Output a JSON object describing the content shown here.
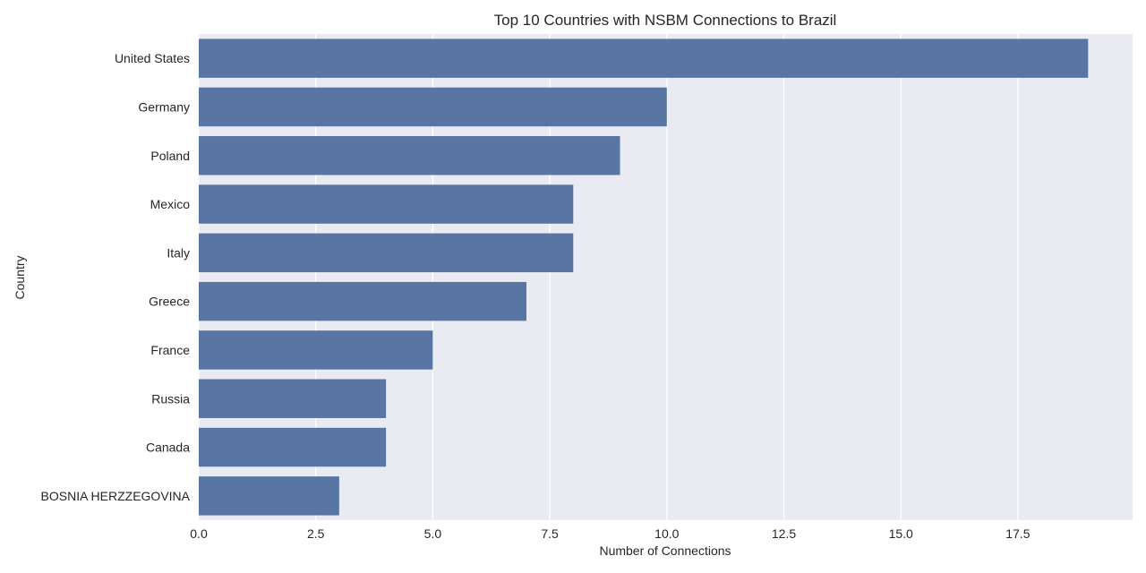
{
  "chart_data": {
    "type": "bar",
    "orientation": "horizontal",
    "title": "Top 10 Countries with NSBM Connections to Brazil",
    "xlabel": "Number of Connections",
    "ylabel": "Country",
    "categories": [
      "United States",
      "Germany",
      "Poland",
      "Mexico",
      "Italy",
      "Greece",
      "France",
      "Russia",
      "Canada",
      "BOSNIA HERZZEGOVINA"
    ],
    "values": [
      19,
      10,
      9,
      8,
      8,
      7,
      5,
      4,
      4,
      3
    ],
    "xlim": [
      0,
      19.95
    ],
    "xticks": [
      "0.0",
      "2.5",
      "5.0",
      "7.5",
      "10.0",
      "12.5",
      "15.0",
      "17.5"
    ],
    "grid": true,
    "colors": {
      "bar": "#5875a4",
      "plot_background": "#eaeaf2",
      "grid": "#ffffff"
    }
  }
}
